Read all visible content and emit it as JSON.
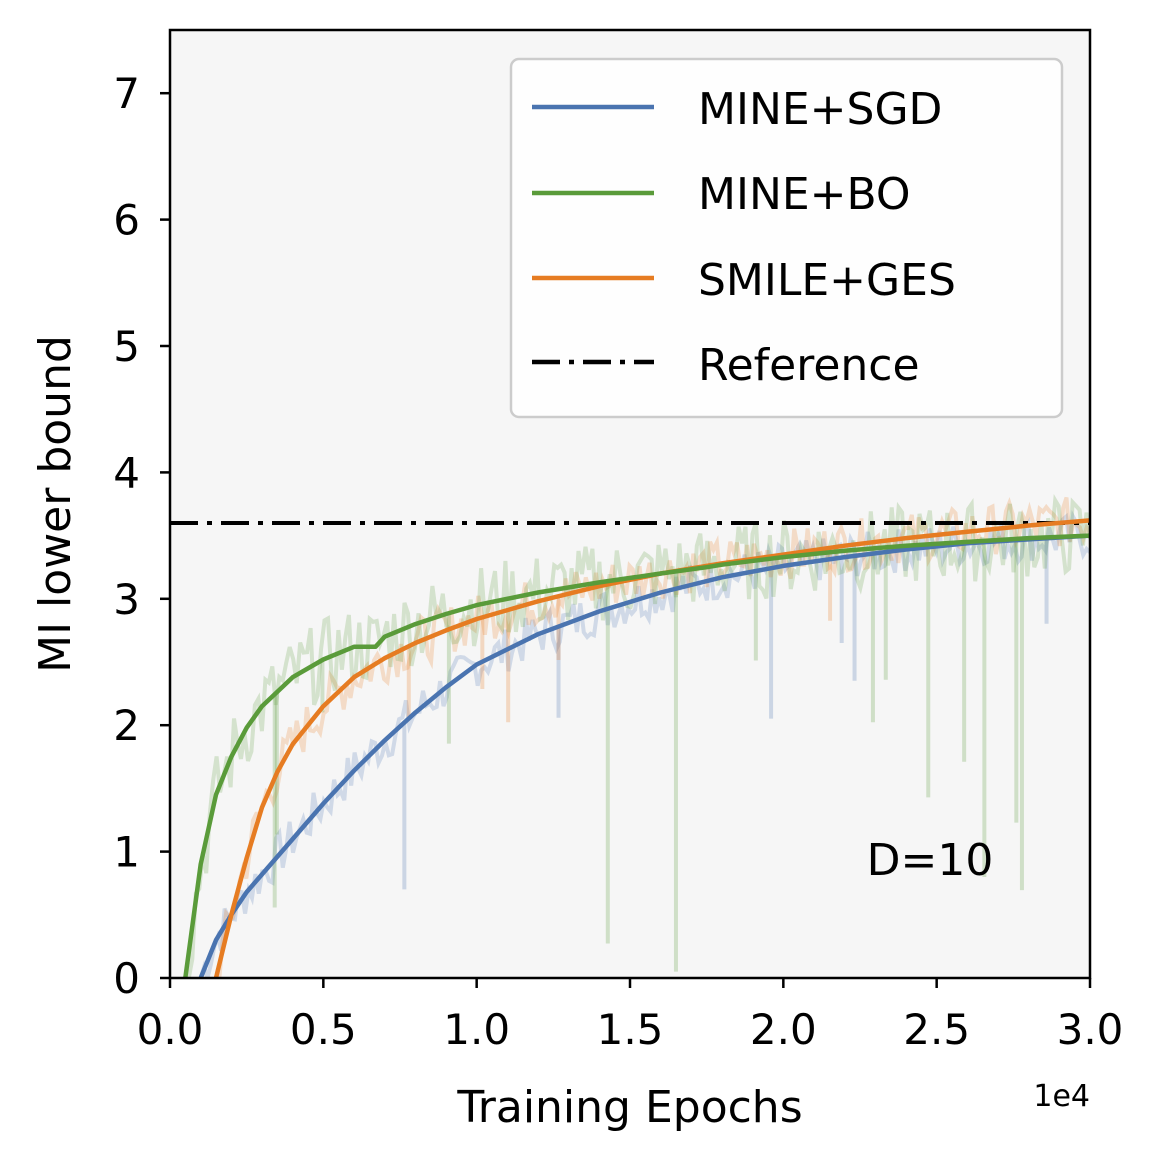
{
  "chart_data": {
    "type": "line",
    "xlabel": "Training Epochs",
    "ylabel": "MI lower bound",
    "x_offset_label": "1e4",
    "xlim": [
      0,
      3.0
    ],
    "ylim": [
      0,
      7.5
    ],
    "x_ticks": [
      0.0,
      0.5,
      1.0,
      1.5,
      2.0,
      2.5,
      3.0
    ],
    "x_tick_labels": [
      "0.0",
      "0.5",
      "1.0",
      "1.5",
      "2.0",
      "2.5",
      "3.0"
    ],
    "y_ticks": [
      0,
      1,
      2,
      3,
      4,
      5,
      6,
      7
    ],
    "y_tick_labels": [
      "0",
      "1",
      "2",
      "3",
      "4",
      "5",
      "6",
      "7"
    ],
    "annotation": "D=10",
    "legend_position": "top-right",
    "series": [
      {
        "name": "MINE+SGD",
        "color": "#4a74b0",
        "x": [
          0.1,
          0.15,
          0.2,
          0.25,
          0.3,
          0.4,
          0.5,
          0.6,
          0.7,
          0.8,
          0.9,
          1.0,
          1.2,
          1.4,
          1.6,
          1.8,
          2.0,
          2.2,
          2.4,
          2.6,
          2.8,
          3.0
        ],
        "y": [
          0.0,
          0.3,
          0.5,
          0.68,
          0.82,
          1.1,
          1.38,
          1.64,
          1.88,
          2.1,
          2.3,
          2.48,
          2.72,
          2.9,
          3.05,
          3.17,
          3.26,
          3.33,
          3.39,
          3.44,
          3.47,
          3.5
        ]
      },
      {
        "name": "MINE+BO",
        "color": "#5a9b3a",
        "x": [
          0.05,
          0.1,
          0.15,
          0.2,
          0.25,
          0.3,
          0.4,
          0.5,
          0.6,
          0.67,
          0.7,
          0.8,
          0.9,
          1.0,
          1.2,
          1.4,
          1.6,
          1.75,
          1.8,
          2.0,
          2.2,
          2.4,
          2.6,
          2.8,
          3.0
        ],
        "y": [
          0.0,
          0.9,
          1.45,
          1.75,
          1.98,
          2.15,
          2.38,
          2.52,
          2.62,
          2.62,
          2.7,
          2.8,
          2.88,
          2.95,
          3.05,
          3.13,
          3.2,
          3.25,
          3.27,
          3.33,
          3.38,
          3.42,
          3.45,
          3.48,
          3.5
        ]
      },
      {
        "name": "SMILE+GES",
        "color": "#e67c22",
        "x": [
          0.15,
          0.2,
          0.25,
          0.3,
          0.35,
          0.4,
          0.5,
          0.6,
          0.7,
          0.8,
          0.9,
          1.0,
          1.2,
          1.4,
          1.6,
          1.8,
          2.0,
          2.2,
          2.4,
          2.6,
          2.8,
          3.0
        ],
        "y": [
          0.0,
          0.5,
          0.95,
          1.35,
          1.63,
          1.85,
          2.15,
          2.38,
          2.53,
          2.65,
          2.75,
          2.84,
          2.98,
          3.1,
          3.2,
          3.28,
          3.35,
          3.42,
          3.48,
          3.53,
          3.58,
          3.62
        ]
      }
    ],
    "reference": {
      "name": "Reference",
      "y": 3.6,
      "color": "#000000",
      "style": "dash-dot"
    }
  }
}
